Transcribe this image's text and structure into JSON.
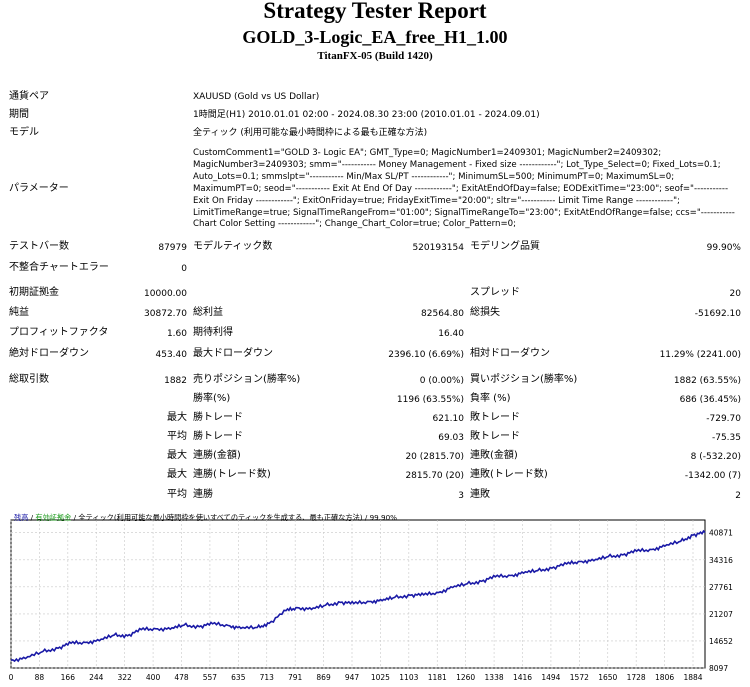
{
  "header": {
    "title": "Strategy Tester Report",
    "subtitle": "GOLD_3-Logic_EA_free_H1_1.00",
    "build": "TitanFX-05 (Build 1420)"
  },
  "info": {
    "symbol_label": "通貨ペア",
    "symbol_value": "XAUUSD (Gold vs US Dollar)",
    "period_label": "期間",
    "period_value": "1時間足(H1) 2010.01.01 02:00 - 2024.08.30 23:00 (2010.01.01 - 2024.09.01)",
    "model_label": "モデル",
    "model_value": "全ティック (利用可能な最小時間枠による最も正確な方法)",
    "params_label": "パラメーター",
    "params_value": "CustomComment1=\"GOLD 3- Logic EA\"; GMT_Type=0; MagicNumber1=2409301; MagicNumber2=2409302; MagicNumber3=2409303; smm=\"----------- Money Management - Fixed size ------------\"; Lot_Type_Select=0; Fixed_Lots=0.1; Auto_Lots=0.1; smmslpt=\"----------- Min/Max SL/PT ------------\"; MinimumSL=500; MinimumPT=0; MaximumSL=0; MaximumPT=0; seod=\"----------- Exit At End Of Day ------------\"; ExitAtEndOfDay=false; EODExitTime=\"23:00\"; seof=\"----------- Exit On Friday ------------\"; ExitOnFriday=true; FridayExitTime=\"20:00\"; sltr=\"----------- Limit Time Range ------------\"; LimitTimeRange=true; SignalTimeRangeFrom=\"01:00\"; SignalTimeRangeTo=\"23:00\"; ExitAtEndOfRange=false; ccs=\"----------- Chart Color Setting ------------\"; Change_Chart_Color=true; Color_Pattern=0;"
  },
  "stats": {
    "bars_label": "テストバー数",
    "bars_value": "87979",
    "ticks_label": "モデルティック数",
    "ticks_value": "520193154",
    "quality_label": "モデリング品質",
    "quality_value": "99.90%",
    "mismatch_label": "不整合チャートエラー",
    "mismatch_value": "0",
    "deposit_label": "初期証拠金",
    "deposit_value": "10000.00",
    "spread_label": "スプレッド",
    "spread_value": "20",
    "net_label": "純益",
    "net_value": "30872.70",
    "gross_profit_label": "総利益",
    "gross_profit_value": "82564.80",
    "gross_loss_label": "総損失",
    "gross_loss_value": "-51692.10",
    "pf_label": "プロフィットファクタ",
    "pf_value": "1.60",
    "payoff_label": "期待利得",
    "payoff_value": "16.40",
    "abs_dd_label": "絶対ドローダウン",
    "abs_dd_value": "453.40",
    "max_dd_label": "最大ドローダウン",
    "max_dd_value": "2396.10 (6.69%)",
    "rel_dd_label": "相対ドローダウン",
    "rel_dd_value": "11.29% (2241.00)",
    "trades_label": "総取引数",
    "trades_value": "1882",
    "short_label": "売りポジション(勝率%)",
    "short_value": "0 (0.00%)",
    "long_label": "買いポジション(勝率%)",
    "long_value": "1882 (63.55%)",
    "win_label": "勝率(%)",
    "win_value": "1196 (63.55%)",
    "loss_label": "負率 (%)",
    "loss_value": "686 (36.45%)",
    "max_label": "最大",
    "avg_label": "平均",
    "largest_win_label": "勝トレード",
    "largest_win_value": "621.10",
    "largest_loss_label": "敗トレード",
    "largest_loss_value": "-729.70",
    "avg_win_label": "勝トレード",
    "avg_win_value": "69.03",
    "avg_loss_label": "敗トレード",
    "avg_loss_value": "-75.35",
    "consec_win_label": "連勝(金額)",
    "consec_win_value": "20 (2815.70)",
    "consec_loss_label": "連敗(金額)",
    "consec_loss_value": "8 (-532.20)",
    "consec_profit_label": "連勝(トレード数)",
    "consec_profit_value": "2815.70 (20)",
    "consec_lossamt_label": "連敗(トレード数)",
    "consec_lossamt_value": "-1342.00 (7)",
    "avg_consec_win_label": "連勝",
    "avg_consec_win_value": "3",
    "avg_consec_loss_label": "連敗",
    "avg_consec_loss_value": "2"
  },
  "chart_caption": {
    "balance": "残高",
    "sep1": " / ",
    "margin": "有効証拠金",
    "sep2": " / ",
    "rest": "全ティック(利用可能な最小時間枠を使いすべてのティックを生成する、最も正確な方法) / 99.90%"
  },
  "chart_data": {
    "type": "line",
    "title": "",
    "xlabel": "",
    "ylabel": "",
    "x_ticks": [
      "0",
      "88",
      "166",
      "244",
      "322",
      "400",
      "478",
      "557",
      "635",
      "713",
      "791",
      "869",
      "947",
      "1025",
      "1103",
      "1181",
      "1260",
      "1338",
      "1416",
      "1494",
      "1572",
      "1650",
      "1728",
      "1806",
      "1884"
    ],
    "y_ticks": [
      "8097",
      "14652",
      "21207",
      "27761",
      "34316",
      "40871"
    ],
    "xlim": [
      0,
      1917
    ],
    "ylim": [
      8097,
      42500
    ],
    "grid": true,
    "series": [
      {
        "color": "#1a1aa6",
        "x": [
          0,
          40,
          88,
          130,
          166,
          205,
          244,
          285,
          322,
          360,
          400,
          440,
          478,
          520,
          557,
          600,
          635,
          680,
          713,
          760,
          791,
          830,
          869,
          910,
          947,
          990,
          1025,
          1060,
          1103,
          1140,
          1181,
          1220,
          1260,
          1300,
          1338,
          1380,
          1416,
          1455,
          1494,
          1535,
          1572,
          1610,
          1650,
          1690,
          1728,
          1770,
          1806,
          1850,
          1884,
          1917
        ],
        "y": [
          10000,
          10400,
          12100,
          12900,
          14100,
          14300,
          14700,
          16100,
          15900,
          17400,
          17600,
          17500,
          18500,
          18100,
          18800,
          18400,
          17700,
          17900,
          18900,
          22000,
          22700,
          22300,
          23300,
          24000,
          23700,
          24200,
          24400,
          25200,
          25700,
          25800,
          26400,
          27600,
          28500,
          29100,
          30200,
          30500,
          31100,
          31700,
          32300,
          33300,
          33900,
          34100,
          35100,
          35500,
          36400,
          36800,
          37600,
          38800,
          40300,
          40900
        ]
      }
    ]
  },
  "colors": {
    "line": "#1a1aa6",
    "balance_caption": "#1a1aa6",
    "margin_caption": "#1a9a1a",
    "grid": "#c8c8c8"
  }
}
